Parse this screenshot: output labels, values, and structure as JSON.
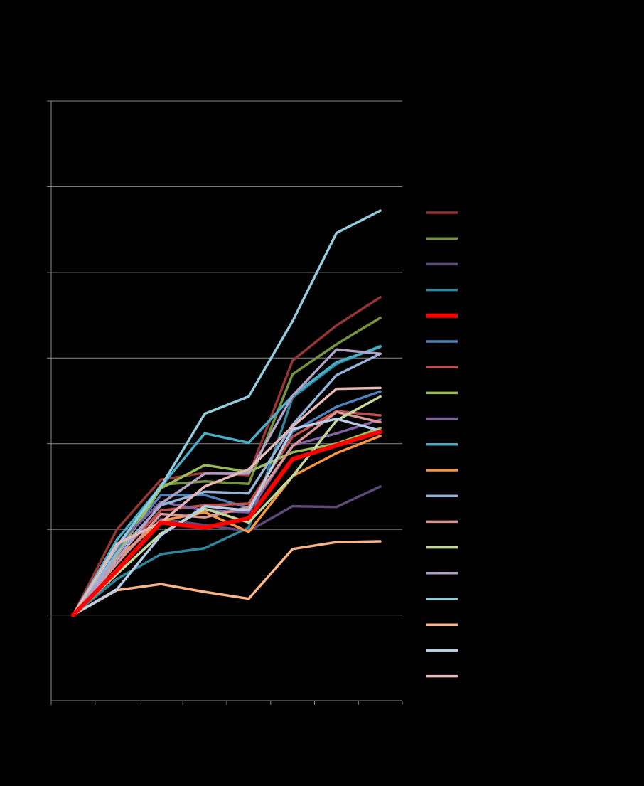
{
  "chart_data": {
    "type": "line",
    "title": "",
    "xlabel": "",
    "ylabel": "",
    "x": [
      1,
      2,
      3,
      4,
      5,
      6,
      7,
      8
    ],
    "xlim": [
      0.5,
      8.5
    ],
    "ylim": [
      -1,
      6
    ],
    "y_gridlines": [
      0,
      1,
      2,
      3,
      4,
      5,
      6
    ],
    "x_tick_count": 8,
    "grid": true,
    "legend_position": "right",
    "series": [
      {
        "color": "#943634",
        "width": 3.5,
        "values": [
          0,
          1.0,
          1.58,
          1.66,
          1.63,
          2.97,
          3.38,
          3.71
        ]
      },
      {
        "color": "#76923c",
        "width": 3.5,
        "values": [
          0,
          0.75,
          1.52,
          1.56,
          1.53,
          2.81,
          3.16,
          3.47
        ]
      },
      {
        "color": "#5f497a",
        "width": 3.5,
        "values": [
          0,
          0.62,
          1.12,
          1.05,
          0.98,
          1.27,
          1.26,
          1.5
        ]
      },
      {
        "color": "#31859c",
        "width": 3.5,
        "values": [
          0,
          0.42,
          0.71,
          0.78,
          1.02,
          2.54,
          2.93,
          3.14
        ]
      },
      {
        "color": "#ff0000",
        "width": 6,
        "values": [
          0,
          0.52,
          1.08,
          1.02,
          1.13,
          1.82,
          1.98,
          2.14
        ]
      },
      {
        "color": "#4f81bd",
        "width": 3.5,
        "values": [
          0,
          0.78,
          1.4,
          1.4,
          1.25,
          2.14,
          2.43,
          2.61
        ]
      },
      {
        "color": "#c0504d",
        "width": 3.5,
        "values": [
          0,
          0.68,
          1.22,
          1.28,
          1.3,
          2.08,
          2.38,
          2.33
        ]
      },
      {
        "color": "#9bbb59",
        "width": 3.5,
        "values": [
          0,
          0.7,
          1.48,
          1.75,
          1.67,
          1.9,
          2.0,
          2.18
        ]
      },
      {
        "color": "#8064a2",
        "width": 3.5,
        "values": [
          0,
          0.82,
          1.32,
          1.22,
          1.2,
          1.98,
          2.12,
          2.28
        ]
      },
      {
        "color": "#4bacc6",
        "width": 3.5,
        "values": [
          0,
          0.88,
          1.5,
          2.12,
          2.01,
          2.56,
          2.95,
          3.13
        ]
      },
      {
        "color": "#f79646",
        "width": 3.5,
        "values": [
          0,
          0.66,
          1.1,
          1.2,
          0.97,
          1.62,
          1.89,
          2.09
        ]
      },
      {
        "color": "#95b3d7",
        "width": 3.5,
        "values": [
          0,
          0.72,
          1.28,
          1.44,
          1.42,
          2.22,
          2.8,
          3.05
        ]
      },
      {
        "color": "#d99694",
        "width": 3.5,
        "values": [
          0,
          0.6,
          1.18,
          1.14,
          1.26,
          1.97,
          2.37,
          2.25
        ]
      },
      {
        "color": "#c3d69b",
        "width": 3.5,
        "values": [
          0,
          0.48,
          0.95,
          1.24,
          1.08,
          1.62,
          2.27,
          2.55
        ]
      },
      {
        "color": "#b2a2c7",
        "width": 3.5,
        "values": [
          0,
          0.65,
          1.3,
          1.65,
          1.65,
          2.56,
          3.1,
          3.05
        ]
      },
      {
        "color": "#93cddd",
        "width": 3.5,
        "values": [
          0,
          0.8,
          1.5,
          2.35,
          2.55,
          3.43,
          4.46,
          4.72
        ]
      },
      {
        "color": "#fab487",
        "width": 3.5,
        "values": [
          0,
          0.29,
          0.36,
          0.27,
          0.19,
          0.77,
          0.85,
          0.86
        ]
      },
      {
        "color": "#b9cde5",
        "width": 3.5,
        "values": [
          0,
          0.3,
          0.93,
          1.27,
          1.22,
          2.17,
          2.29,
          2.15
        ]
      },
      {
        "color": "#e6b9b8",
        "width": 3.5,
        "values": [
          0,
          0.83,
          1.08,
          1.5,
          1.7,
          2.2,
          2.64,
          2.65
        ]
      }
    ]
  }
}
